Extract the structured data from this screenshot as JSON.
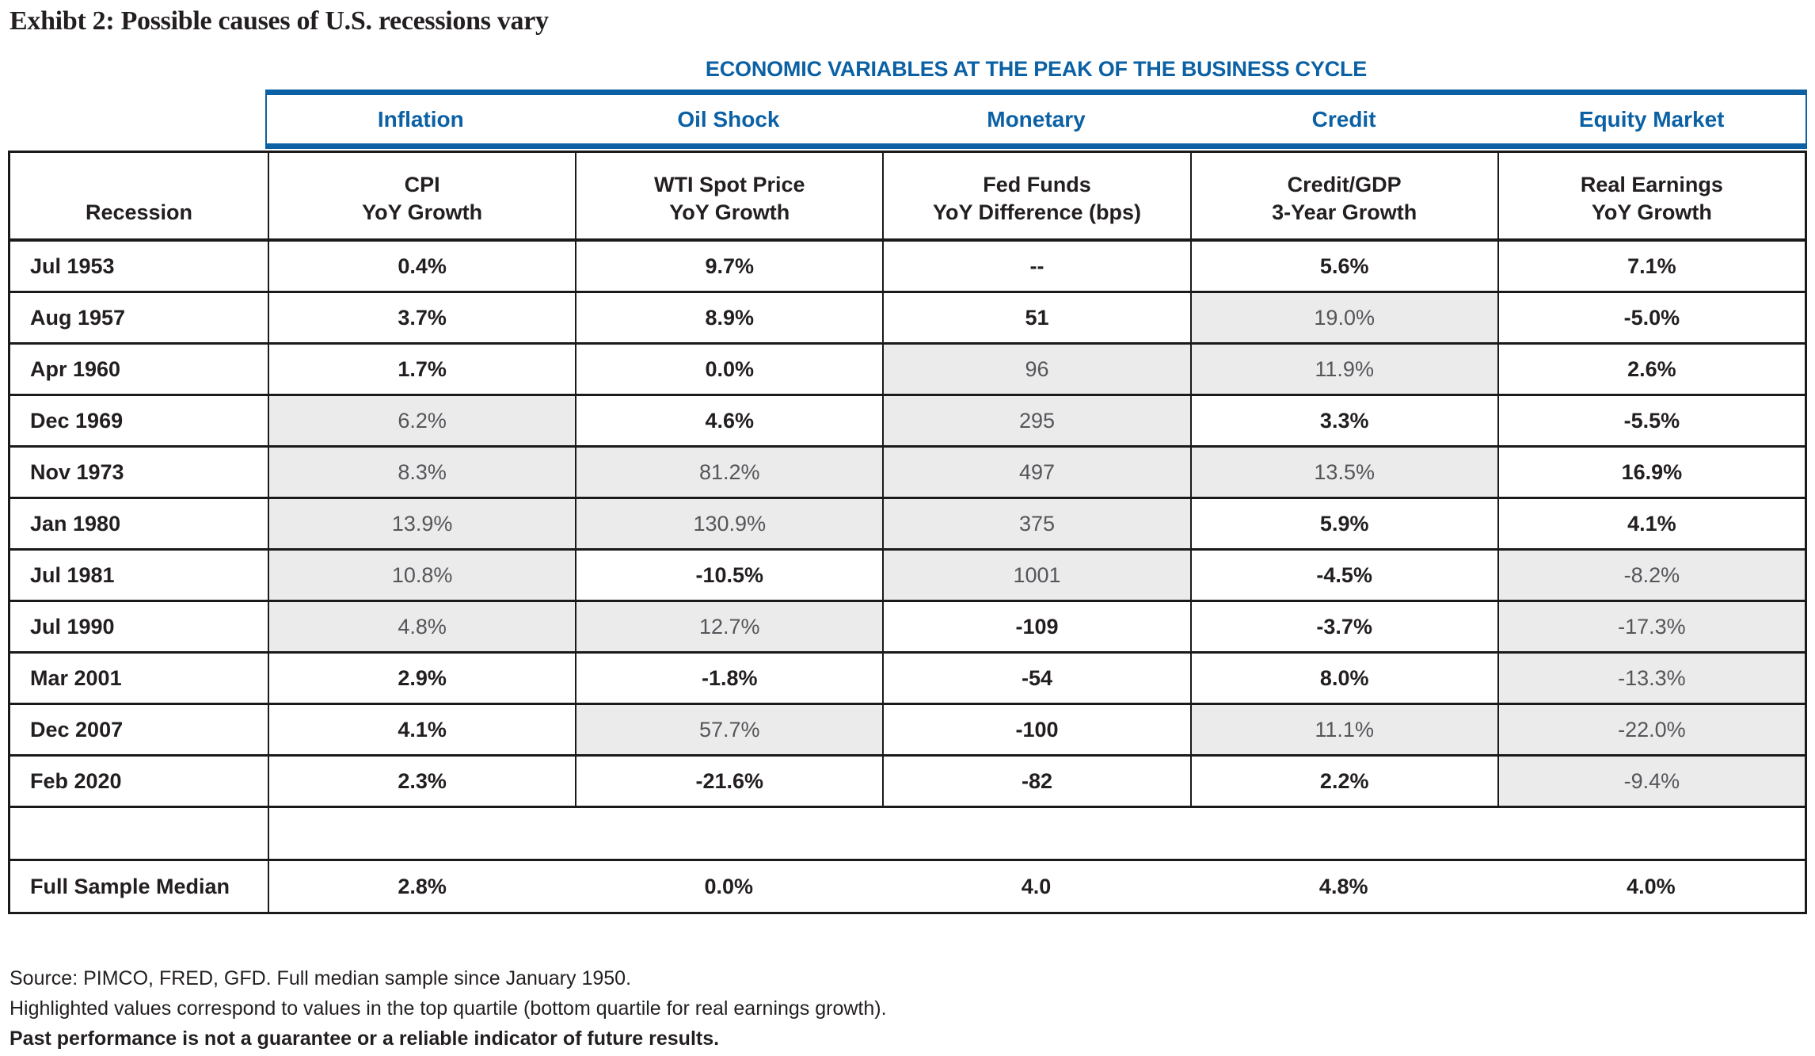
{
  "title": "Exhibt 2: Possible causes of U.S. recessions vary",
  "colors": {
    "accent_blue": "#0b61a4",
    "highlight_gray": "#ebebeb",
    "border_black": "#1a1a1a"
  },
  "table": {
    "banner": "ECONOMIC VARIABLES AT THE PEAK OF THE BUSINESS CYCLE",
    "categories": [
      "Inflation",
      "Oil Shock",
      "Monetary",
      "Credit",
      "Equity Market"
    ],
    "row_header": "Recession",
    "column_headers": [
      {
        "line1": "CPI",
        "line2": "YoY Growth"
      },
      {
        "line1": "WTI Spot Price",
        "line2": "YoY Growth"
      },
      {
        "line1": "Fed Funds",
        "line2": "YoY Difference (bps)"
      },
      {
        "line1": "Credit/GDP",
        "line2": "3-Year Growth"
      },
      {
        "line1": "Real Earnings",
        "line2": "YoY Growth"
      }
    ],
    "rows": [
      {
        "label": "Jul 1953",
        "values": [
          "0.4%",
          "9.7%",
          "--",
          "5.6%",
          "7.1%"
        ],
        "highlight": [
          false,
          false,
          false,
          false,
          false
        ]
      },
      {
        "label": "Aug 1957",
        "values": [
          "3.7%",
          "8.9%",
          "51",
          "19.0%",
          "-5.0%"
        ],
        "highlight": [
          false,
          false,
          false,
          true,
          false
        ]
      },
      {
        "label": "Apr 1960",
        "values": [
          "1.7%",
          "0.0%",
          "96",
          "11.9%",
          "2.6%"
        ],
        "highlight": [
          false,
          false,
          true,
          true,
          false
        ]
      },
      {
        "label": "Dec 1969",
        "values": [
          "6.2%",
          "4.6%",
          "295",
          "3.3%",
          "-5.5%"
        ],
        "highlight": [
          true,
          false,
          true,
          false,
          false
        ]
      },
      {
        "label": "Nov 1973",
        "values": [
          "8.3%",
          "81.2%",
          "497",
          "13.5%",
          "16.9%"
        ],
        "highlight": [
          true,
          true,
          true,
          true,
          false
        ]
      },
      {
        "label": "Jan 1980",
        "values": [
          "13.9%",
          "130.9%",
          "375",
          "5.9%",
          "4.1%"
        ],
        "highlight": [
          true,
          true,
          true,
          false,
          false
        ]
      },
      {
        "label": "Jul 1981",
        "values": [
          "10.8%",
          "-10.5%",
          "1001",
          "-4.5%",
          "-8.2%"
        ],
        "highlight": [
          true,
          false,
          true,
          false,
          true
        ]
      },
      {
        "label": "Jul 1990",
        "values": [
          "4.8%",
          "12.7%",
          "-109",
          "-3.7%",
          "-17.3%"
        ],
        "highlight": [
          true,
          true,
          false,
          false,
          true
        ]
      },
      {
        "label": "Mar 2001",
        "values": [
          "2.9%",
          "-1.8%",
          "-54",
          "8.0%",
          "-13.3%"
        ],
        "highlight": [
          false,
          false,
          false,
          false,
          true
        ]
      },
      {
        "label": "Dec 2007",
        "values": [
          "4.1%",
          "57.7%",
          "-100",
          "11.1%",
          "-22.0%"
        ],
        "highlight": [
          false,
          true,
          false,
          true,
          true
        ]
      },
      {
        "label": "Feb 2020",
        "values": [
          "2.3%",
          "-21.6%",
          "-82",
          "2.2%",
          "-9.4%"
        ],
        "highlight": [
          false,
          false,
          false,
          false,
          true
        ]
      },
      {
        "label": "",
        "blank": true,
        "values": [
          "",
          "",
          "",
          "",
          ""
        ],
        "highlight": [
          false,
          false,
          false,
          false,
          false
        ]
      },
      {
        "label": "Full Sample Median",
        "summary": true,
        "values": [
          "2.8%",
          "0.0%",
          "4.0",
          "4.8%",
          "4.0%"
        ],
        "highlight": [
          false,
          false,
          false,
          false,
          false
        ]
      }
    ]
  },
  "footer": {
    "line1": "Source: PIMCO, FRED, GFD. Full median sample since January 1950.",
    "line2": "Highlighted values correspond to values in the top quartile (bottom quartile for real earnings growth).",
    "line3": "Past performance is not a guarantee or a reliable indicator of future results."
  }
}
